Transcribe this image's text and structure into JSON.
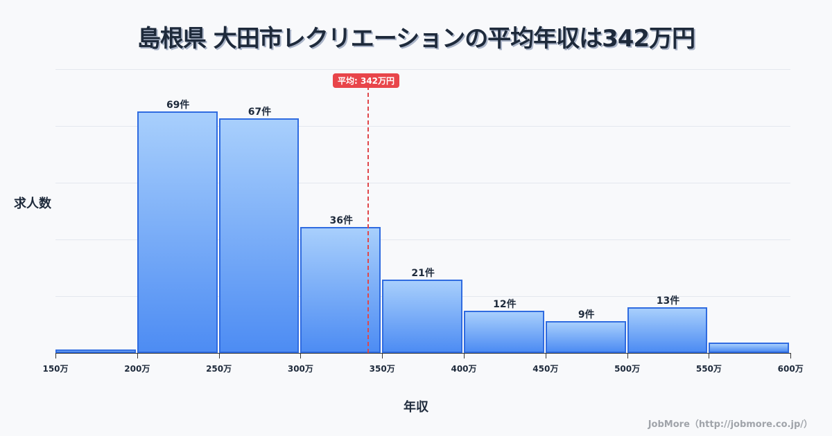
{
  "title": "島根県 大田市レクリエーションの平均年収は342万円",
  "footer": "JobMore（http://jobmore.co.jp/）",
  "mean_label": "平均: 342万円",
  "chart_data": {
    "type": "bar",
    "title": "島根県 大田市レクリエーションの平均年収は342万円",
    "xlabel": "年収",
    "ylabel": "求人数",
    "categories": [
      "150-200万",
      "200-250万",
      "250-300万",
      "300-350万",
      "350-400万",
      "400-450万",
      "450-500万",
      "500-550万",
      "550-600万"
    ],
    "x_ticks": [
      "150万",
      "200万",
      "250万",
      "300万",
      "350万",
      "400万",
      "450万",
      "500万",
      "550万",
      "600万"
    ],
    "values": [
      1,
      69,
      67,
      36,
      21,
      12,
      9,
      13,
      3
    ],
    "value_labels": [
      "",
      "69件",
      "67件",
      "36件",
      "21件",
      "12件",
      "9件",
      "13件",
      ""
    ],
    "mean": 342,
    "mean_label": "平均: 342万円",
    "ylim": [
      0,
      81
    ],
    "grid": true,
    "colors": {
      "bar_top": "#a8cffc",
      "bar_bottom": "#4d8cf3",
      "bar_border": "#2f6be0",
      "mean_line": "#e0464a"
    }
  }
}
